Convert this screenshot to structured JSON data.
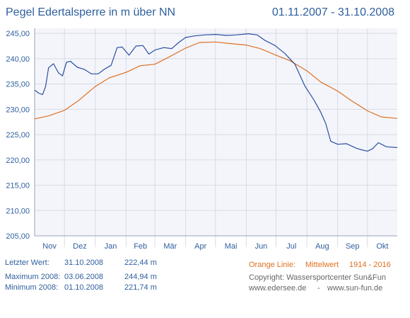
{
  "header": {
    "title": "Pegel Edertalsperre in m über NN",
    "period": "01.11.2007 - 31.10.2008"
  },
  "stats": {
    "last": {
      "label": "Letzter Wert:",
      "date": "31.10.2008",
      "value": "222,44 m"
    },
    "max": {
      "label": "Maximum 2008:",
      "date": "03.06.2008",
      "value": "244,94 m"
    },
    "min": {
      "label": "Minimum  2008:",
      "date": "01.10.2008",
      "value": "221,74 m"
    }
  },
  "legend": {
    "orange_label": "Orange Linie:",
    "orange_desc": "Mittelwert",
    "orange_range": "1914 - 2016"
  },
  "footer": {
    "copyright": "Copyright: Wassersportcenter Sun&Fun",
    "website1": "www.edersee.de",
    "separator": "-",
    "website2": "www.sun-fun.de"
  },
  "colors": {
    "series_2008": "#2850a0",
    "series_mean": "#e07020",
    "text": "#2f5f9e",
    "plot_bg": "#f4f5fb"
  },
  "chart_data": {
    "type": "line",
    "x_tick_labels": [
      "Nov",
      "Dez",
      "Jan",
      "Feb",
      "Mär",
      "Apr",
      "Mai",
      "Jun",
      "Jul",
      "Aug",
      "Sep",
      "Okt"
    ],
    "y_tick_labels": [
      "205,00",
      "210,00",
      "215,00",
      "220,00",
      "225,00",
      "230,00",
      "235,00",
      "240,00",
      "245,00"
    ],
    "xlim": [
      "01.11.2007",
      "31.10.2008"
    ],
    "ylim": [
      205,
      246
    ],
    "grid": true,
    "series": [
      {
        "color": "#2850a0",
        "x": [
          "01.11.2007",
          "05.11.2007",
          "09.11.2007",
          "12.11.2007",
          "15.11.2007",
          "20.11.2007",
          "25.11.2007",
          "29.11.2007",
          "03.12.2007",
          "07.12.2007",
          "14.12.2007",
          "21.12.2007",
          "28.12.2007",
          "04.01.2008",
          "10.01.2008",
          "17.01.2008",
          "23.01.2008",
          "28.01.2008",
          "04.02.2008",
          "11.02.2008",
          "18.02.2008",
          "24.02.2008",
          "01.03.2008",
          "10.03.2008",
          "18.03.2008",
          "25.03.2008",
          "01.04.2008",
          "10.04.2008",
          "20.04.2008",
          "01.05.2008",
          "12.05.2008",
          "22.05.2008",
          "03.06.2008",
          "12.06.2008",
          "20.06.2008",
          "30.06.2008",
          "10.07.2008",
          "20.07.2008",
          "30.07.2008",
          "08.08.2008",
          "15.08.2008",
          "20.08.2008",
          "25.08.2008",
          "01.09.2008",
          "10.09.2008",
          "20.09.2008",
          "25.09.2008",
          "01.10.2008",
          "06.10.2008",
          "12.10.2008",
          "20.10.2008",
          "31.10.2008"
        ],
        "y": [
          233.8,
          233.2,
          232.9,
          234.5,
          238.2,
          239.0,
          237.2,
          236.6,
          239.3,
          239.5,
          238.3,
          237.9,
          237.0,
          237.0,
          237.9,
          238.7,
          242.2,
          242.3,
          240.7,
          242.5,
          242.6,
          240.9,
          241.7,
          242.2,
          242.0,
          243.2,
          244.2,
          244.5,
          244.7,
          244.8,
          244.6,
          244.7,
          244.94,
          244.7,
          243.6,
          242.6,
          241.0,
          238.9,
          234.6,
          231.9,
          229.4,
          227.2,
          223.7,
          223.1,
          223.2,
          222.3,
          222.0,
          221.74,
          222.2,
          223.4,
          222.6,
          222.44
        ]
      },
      {
        "color": "#e07020",
        "x": [
          "01.11.2007",
          "15.11.2007",
          "01.12.2007",
          "15.12.2007",
          "01.01.2008",
          "15.01.2008",
          "01.02.2008",
          "15.02.2008",
          "01.03.2008",
          "15.03.2008",
          "01.04.2008",
          "15.04.2008",
          "01.05.2008",
          "15.05.2008",
          "01.06.2008",
          "15.06.2008",
          "01.07.2008",
          "15.07.2008",
          "01.08.2008",
          "15.08.2008",
          "01.09.2008",
          "15.09.2008",
          "01.10.2008",
          "15.10.2008",
          "31.10.2008"
        ],
        "y": [
          228.1,
          228.7,
          229.8,
          231.7,
          234.5,
          236.2,
          237.3,
          238.6,
          238.9,
          240.3,
          242.1,
          243.2,
          243.3,
          243.0,
          242.7,
          242.0,
          240.7,
          239.6,
          237.6,
          235.4,
          233.6,
          231.7,
          229.7,
          228.5,
          228.2
        ]
      }
    ]
  }
}
